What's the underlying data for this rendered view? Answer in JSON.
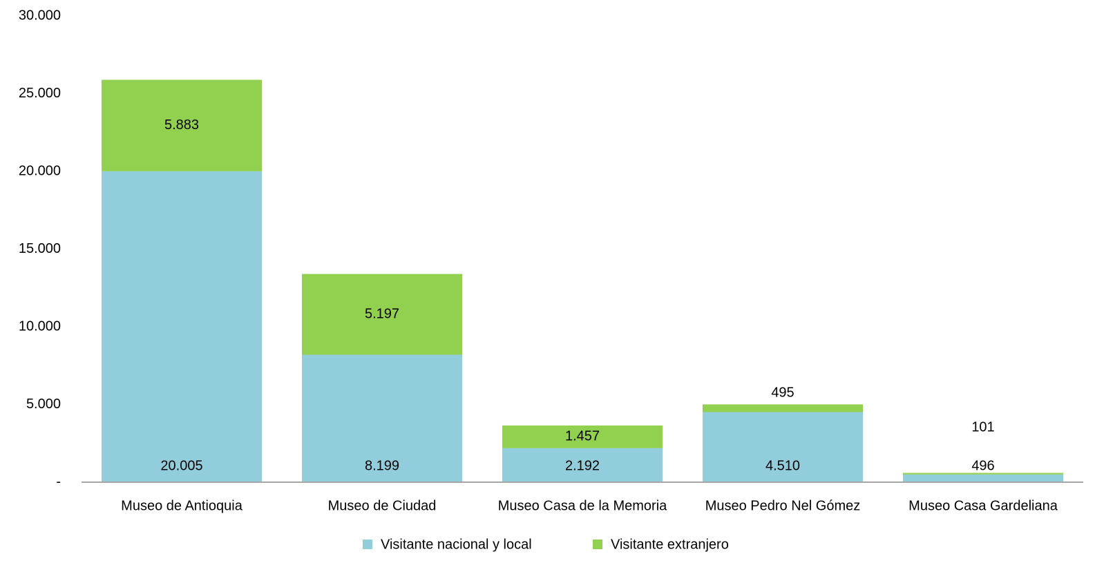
{
  "chart_data": {
    "type": "stacked_bar",
    "categories": [
      "Museo de Antioquia",
      "Museo de Ciudad",
      "Museo Casa de la Memoria",
      "Museo Pedro Nel Gómez",
      "Museo Casa Gardeliana"
    ],
    "series": [
      {
        "name": "Visitante nacional y local",
        "color": "#92cddc",
        "values": [
          20005,
          8199,
          2192,
          4510,
          496
        ],
        "value_labels": [
          "20.005",
          "8.199",
          "2.192",
          "4.510",
          "496"
        ]
      },
      {
        "name": "Visitante extranjero",
        "color": "#92d050",
        "values": [
          5883,
          5197,
          1457,
          495,
          101
        ],
        "value_labels": [
          "5.883",
          "5.197",
          "1.457",
          "495",
          "101"
        ]
      }
    ],
    "ylim": [
      0,
      30000
    ],
    "yticks": [
      {
        "value": 0,
        "label": "-"
      },
      {
        "value": 5000,
        "label": "5.000"
      },
      {
        "value": 10000,
        "label": "10.000"
      },
      {
        "value": 15000,
        "label": "15.000"
      },
      {
        "value": 20000,
        "label": "20.000"
      },
      {
        "value": 25000,
        "label": "25.000"
      },
      {
        "value": 30000,
        "label": "30.000"
      }
    ],
    "legend": "bottom"
  }
}
